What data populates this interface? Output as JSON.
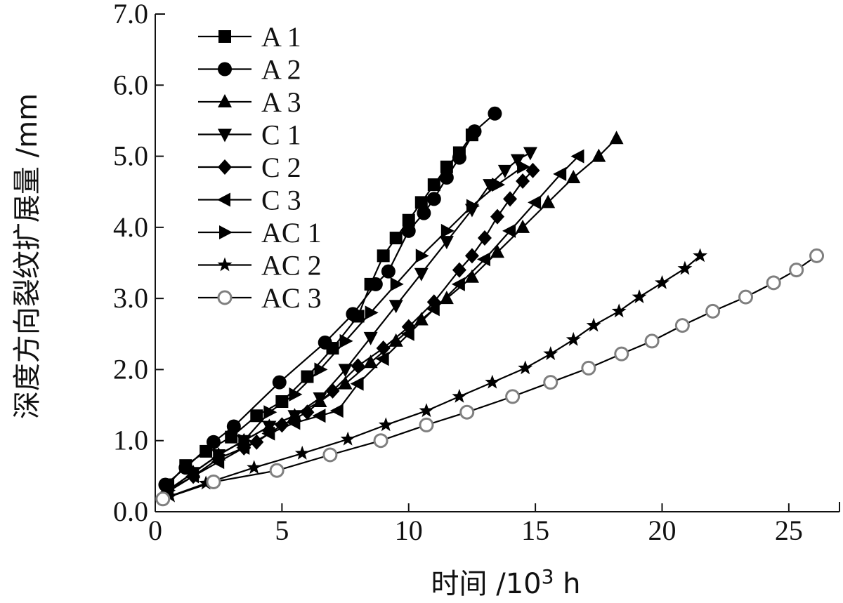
{
  "chart_data": {
    "type": "line",
    "xlabel": "时间 /10",
    "xlabel_sup": "3",
    "xlabel_unit": " h",
    "ylabel": "深度方向裂纹扩展量 /mm",
    "xlim": [
      0,
      27
    ],
    "ylim": [
      0,
      7
    ],
    "x_ticks": [
      0,
      5,
      10,
      15,
      20,
      25
    ],
    "x_tick_labels": [
      "0",
      "5",
      "10",
      "15",
      "20",
      "25"
    ],
    "y_ticks": [
      0,
      1,
      2,
      3,
      4,
      5,
      6,
      7
    ],
    "y_tick_labels": [
      "0.0",
      "1.0",
      "2.0",
      "3.0",
      "4.0",
      "5.0",
      "6.0",
      "7.0"
    ],
    "grid": false,
    "legend_position": "top-left",
    "series": [
      {
        "name": "A 1",
        "marker": "square",
        "color": "#000000",
        "x": [
          0.5,
          1.2,
          2.0,
          3.0,
          4.0,
          5.0,
          6.0,
          7.0,
          8.0,
          8.5,
          9.0,
          9.5,
          10.0,
          10.5,
          11.0,
          11.5,
          12.0,
          12.5
        ],
        "y": [
          0.38,
          0.65,
          0.85,
          1.05,
          1.35,
          1.55,
          1.9,
          2.3,
          2.75,
          3.2,
          3.6,
          3.85,
          4.1,
          4.35,
          4.6,
          4.85,
          5.05,
          5.3
        ]
      },
      {
        "name": "A 2",
        "marker": "circle",
        "color": "#000000",
        "x": [
          0.4,
          1.2,
          2.3,
          3.1,
          4.9,
          6.7,
          7.8,
          8.7,
          9.2,
          10.0,
          10.6,
          11.0,
          11.5,
          12.0,
          12.6,
          13.4
        ],
        "y": [
          0.38,
          0.62,
          0.98,
          1.2,
          1.82,
          2.38,
          2.78,
          3.2,
          3.38,
          3.95,
          4.2,
          4.4,
          4.7,
          4.98,
          5.35,
          5.6
        ]
      },
      {
        "name": "A 3",
        "marker": "triangle-up",
        "color": "#000000",
        "x": [
          0.5,
          1.5,
          2.5,
          3.5,
          4.5,
          5.5,
          6.5,
          7.5,
          8.5,
          9.5,
          10.5,
          11.5,
          12.5,
          13.5,
          14.5,
          15.5,
          16.5,
          17.5,
          18.2
        ],
        "y": [
          0.3,
          0.55,
          0.8,
          1.0,
          1.2,
          1.35,
          1.55,
          1.8,
          2.1,
          2.4,
          2.7,
          3.0,
          3.3,
          3.65,
          4.0,
          4.35,
          4.7,
          5.0,
          5.25
        ]
      },
      {
        "name": "C 1",
        "marker": "triangle-down",
        "color": "#000000",
        "x": [
          0.5,
          1.5,
          2.5,
          3.5,
          4.5,
          5.5,
          6.5,
          7.5,
          8.5,
          9.5,
          10.5,
          11.5,
          12.5,
          13.2,
          13.8,
          14.3,
          14.8
        ],
        "y": [
          0.3,
          0.55,
          0.8,
          1.0,
          1.2,
          1.35,
          1.6,
          2.0,
          2.45,
          2.9,
          3.35,
          3.8,
          4.25,
          4.6,
          4.8,
          4.95,
          5.05
        ]
      },
      {
        "name": "C 2",
        "marker": "diamond",
        "color": "#000000",
        "x": [
          0.5,
          1.5,
          2.5,
          3.5,
          4.0,
          5.0,
          6.0,
          7.0,
          8.0,
          9.0,
          10.0,
          11.0,
          12.0,
          12.5,
          13.0,
          13.5,
          14.0,
          14.5,
          14.9
        ],
        "y": [
          0.3,
          0.5,
          0.75,
          0.9,
          0.98,
          1.22,
          1.4,
          1.7,
          2.05,
          2.3,
          2.6,
          2.95,
          3.4,
          3.6,
          3.85,
          4.15,
          4.4,
          4.65,
          4.8
        ]
      },
      {
        "name": "C 3",
        "marker": "triangle-left",
        "color": "#000000",
        "x": [
          0.5,
          1.5,
          2.5,
          3.5,
          4.5,
          5.5,
          6.5,
          7.2,
          8.0,
          9.0,
          10.0,
          11.0,
          12.0,
          13.0,
          14.0,
          15.0,
          16.0,
          16.7
        ],
        "y": [
          0.28,
          0.5,
          0.7,
          0.9,
          1.1,
          1.25,
          1.35,
          1.42,
          1.8,
          2.15,
          2.5,
          2.85,
          3.2,
          3.55,
          3.95,
          4.35,
          4.75,
          5.0
        ]
      },
      {
        "name": "AC 1",
        "marker": "triangle-right",
        "color": "#000000",
        "x": [
          0.5,
          1.5,
          2.5,
          3.5,
          4.5,
          5.5,
          6.5,
          7.5,
          8.5,
          9.5,
          10.5,
          11.5,
          12.5,
          13.5,
          14.5
        ],
        "y": [
          0.3,
          0.55,
          0.8,
          1.0,
          1.4,
          1.65,
          2.0,
          2.4,
          2.8,
          3.2,
          3.6,
          3.95,
          4.3,
          4.6,
          4.85
        ]
      },
      {
        "name": "AC 2",
        "marker": "star",
        "color": "#000000",
        "x": [
          0.6,
          2.0,
          3.9,
          5.8,
          7.6,
          9.1,
          10.7,
          12.0,
          13.3,
          14.6,
          15.6,
          16.5,
          17.3,
          18.3,
          19.1,
          20.0,
          20.9,
          21.5
        ],
        "y": [
          0.22,
          0.4,
          0.62,
          0.82,
          1.02,
          1.22,
          1.42,
          1.62,
          1.82,
          2.02,
          2.22,
          2.42,
          2.62,
          2.82,
          3.02,
          3.22,
          3.42,
          3.6
        ]
      },
      {
        "name": "AC 3",
        "marker": "open-circle",
        "color": "#7f7f7f",
        "x": [
          0.3,
          2.3,
          4.8,
          6.9,
          8.9,
          10.7,
          12.3,
          14.1,
          15.6,
          17.1,
          18.4,
          19.6,
          20.8,
          22.0,
          23.3,
          24.4,
          25.3,
          26.1
        ],
        "y": [
          0.18,
          0.42,
          0.58,
          0.8,
          1.0,
          1.22,
          1.4,
          1.62,
          1.82,
          2.02,
          2.22,
          2.4,
          2.62,
          2.82,
          3.02,
          3.22,
          3.4,
          3.6
        ]
      }
    ]
  }
}
